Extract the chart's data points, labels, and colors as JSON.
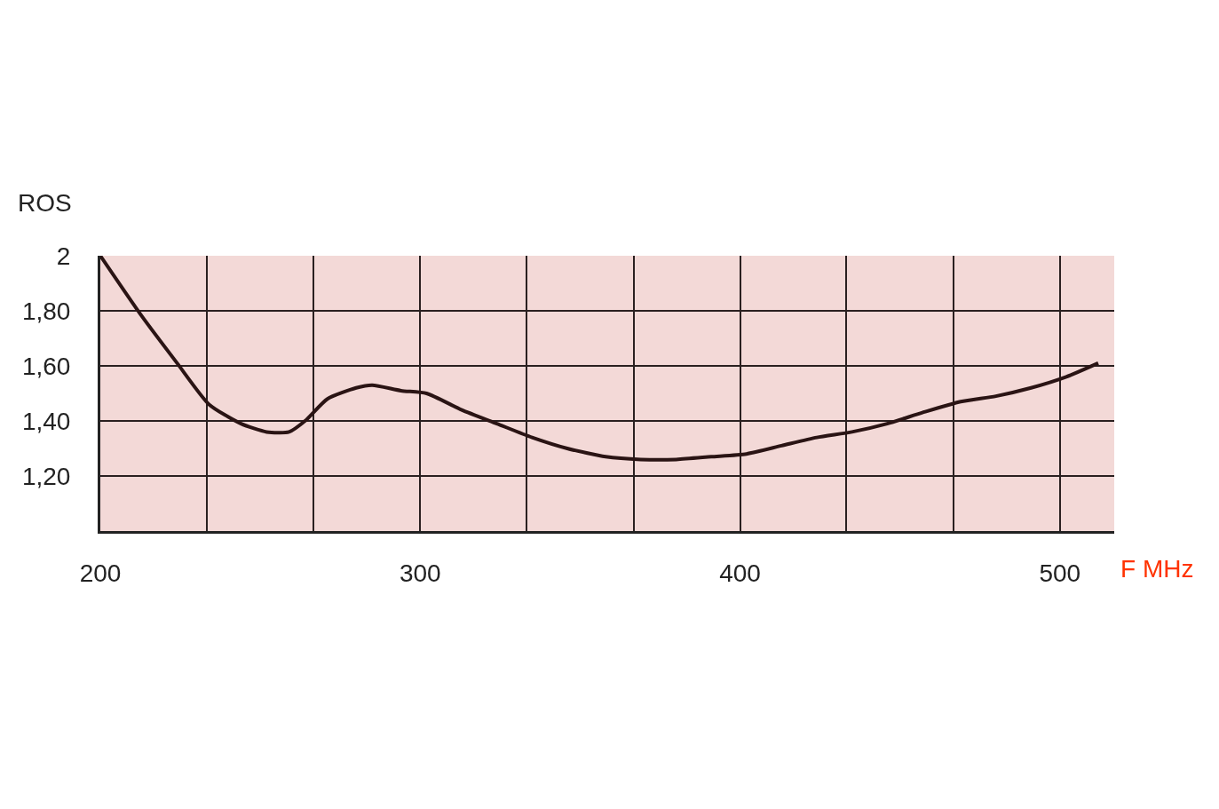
{
  "chart_data": {
    "type": "line",
    "xlabel": "F MHz",
    "ylabel": "ROS",
    "x": [
      200,
      213,
      224,
      234,
      244,
      252,
      259,
      264,
      271,
      280,
      285,
      294,
      302,
      313,
      324,
      335,
      346,
      358,
      369,
      380,
      391,
      402,
      413,
      424,
      435,
      446,
      457,
      469,
      480,
      491,
      502,
      512
    ],
    "series": [
      {
        "color": "#2a1414",
        "values": [
          2.0,
          1.78,
          1.61,
          1.46,
          1.39,
          1.36,
          1.36,
          1.4,
          1.48,
          1.52,
          1.53,
          1.51,
          1.5,
          1.44,
          1.39,
          1.34,
          1.3,
          1.27,
          1.26,
          1.26,
          1.27,
          1.28,
          1.31,
          1.34,
          1.36,
          1.39,
          1.43,
          1.47,
          1.49,
          1.52,
          1.56,
          1.61
        ]
      }
    ],
    "xlim": [
      200,
      517
    ],
    "ylim": [
      1,
      2
    ],
    "xticks": [
      200,
      {
        "value": 233.3,
        "label": null
      },
      {
        "value": 266.7,
        "label": null
      },
      300,
      {
        "value": 333.3,
        "label": null
      },
      {
        "value": 366.7,
        "label": null
      },
      400,
      {
        "value": 433.3,
        "label": null
      },
      {
        "value": 466.7,
        "label": null
      },
      500
    ],
    "yticks": [
      {
        "value": 1.2,
        "label": "1,20"
      },
      {
        "value": 1.4,
        "label": "1,40"
      },
      {
        "value": 1.6,
        "label": "1,60"
      },
      {
        "value": 1.8,
        "label": "1,80"
      },
      2
    ],
    "grid": true,
    "legend": false,
    "marker": "none",
    "line_style": "solid"
  }
}
